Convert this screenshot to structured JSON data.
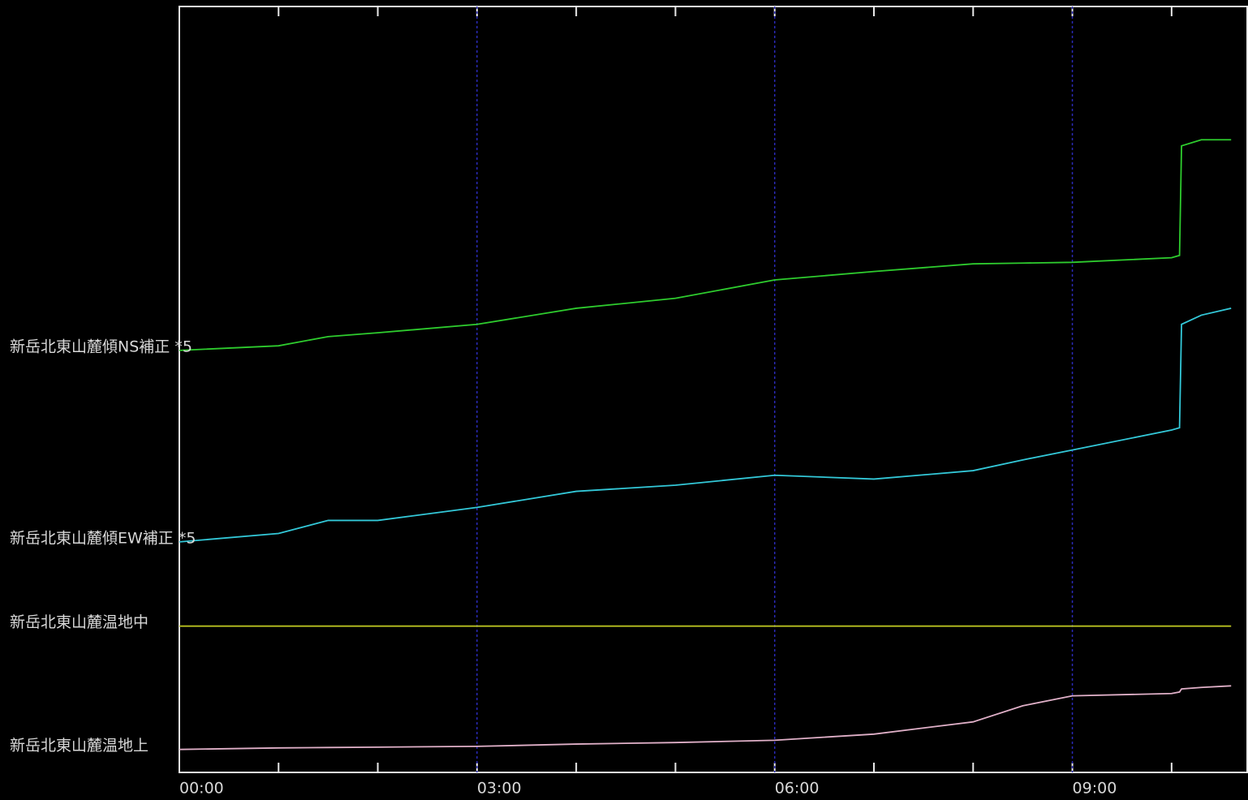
{
  "chart_data": {
    "type": "line",
    "x": [
      0,
      1,
      1.5,
      2,
      3,
      4,
      5,
      6,
      7,
      8,
      8.5,
      9,
      10,
      10.08,
      10.1,
      10.3,
      10.6
    ],
    "xlim": [
      0,
      10.77
    ],
    "xticks": [
      {
        "value": 0,
        "label": "00:00"
      },
      {
        "value": 3,
        "label": "03:00"
      },
      {
        "value": 6,
        "label": "06:00"
      },
      {
        "value": 9,
        "label": "09:00"
      }
    ],
    "minor_xticks": [
      1,
      2,
      4,
      5,
      7,
      8,
      10
    ],
    "ylim": [
      0,
      100
    ],
    "grid": true,
    "series": [
      {
        "name": "新岳北東山麓傾NS補正 *5",
        "color": "#2ecc2e",
        "values": [
          55.1,
          55.7,
          56.9,
          57.4,
          58.5,
          60.6,
          61.9,
          64.3,
          65.4,
          66.4,
          66.5,
          66.6,
          67.2,
          67.5,
          81.8,
          82.6,
          82.6
        ]
      },
      {
        "name": "新岳北東山麓傾EW補正 *5",
        "color": "#33c8d8",
        "values": [
          30.1,
          31.2,
          32.9,
          32.9,
          34.6,
          36.7,
          37.5,
          38.8,
          38.3,
          39.4,
          40.8,
          42.1,
          44.7,
          45.0,
          58.5,
          59.7,
          60.6
        ]
      },
      {
        "name": "新岳北東山麓温地中",
        "color": "#b8c020",
        "values": [
          19.1,
          19.1,
          19.1,
          19.1,
          19.1,
          19.1,
          19.1,
          19.1,
          19.1,
          19.1,
          19.1,
          19.1,
          19.1,
          19.1,
          19.1,
          19.1,
          19.1
        ]
      },
      {
        "name": "新岳北東山麓温地上",
        "color": "#e0b0c8",
        "values": [
          3.0,
          3.2,
          3.25,
          3.3,
          3.4,
          3.7,
          3.9,
          4.2,
          5.0,
          6.6,
          8.7,
          10.0,
          10.3,
          10.5,
          10.9,
          11.1,
          11.3
        ]
      }
    ]
  }
}
